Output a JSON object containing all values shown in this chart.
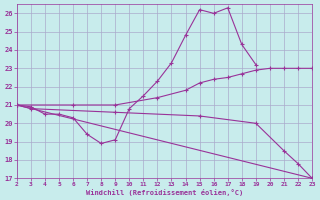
{
  "background_color": "#c8ecec",
  "grid_color": "#aaaacc",
  "line_color": "#993399",
  "xlabel": "Windchill (Refroidissement éolien,°C)",
  "xlim": [
    2,
    23
  ],
  "ylim": [
    17,
    26.5
  ],
  "xticks": [
    2,
    3,
    4,
    5,
    6,
    7,
    8,
    9,
    10,
    11,
    12,
    13,
    14,
    15,
    16,
    17,
    18,
    19,
    20,
    21,
    22,
    23
  ],
  "yticks": [
    17,
    18,
    19,
    20,
    21,
    22,
    23,
    24,
    25,
    26
  ],
  "series": [
    {
      "x": [
        2,
        3,
        4,
        5,
        6,
        7,
        8,
        9,
        10,
        11,
        12,
        13,
        14,
        15,
        16,
        17,
        18,
        19
      ],
      "y": [
        21.0,
        20.9,
        20.5,
        20.5,
        20.3,
        19.4,
        18.9,
        19.1,
        20.8,
        21.5,
        22.3,
        23.3,
        24.8,
        26.2,
        26.0,
        26.3,
        24.3,
        23.2
      ]
    },
    {
      "x": [
        2,
        6,
        9,
        12,
        14,
        15,
        16,
        17,
        18,
        19,
        20,
        21,
        22,
        23
      ],
      "y": [
        21.0,
        21.0,
        21.0,
        21.4,
        21.8,
        22.2,
        22.4,
        22.5,
        22.7,
        22.9,
        23.0,
        23.0,
        23.0,
        23.0
      ]
    },
    {
      "x": [
        2,
        3,
        9,
        15,
        19,
        21,
        22,
        23
      ],
      "y": [
        21.0,
        20.8,
        20.6,
        20.4,
        20.0,
        18.5,
        17.8,
        17.0
      ]
    },
    {
      "x": [
        2,
        23
      ],
      "y": [
        21.0,
        17.0
      ]
    }
  ]
}
